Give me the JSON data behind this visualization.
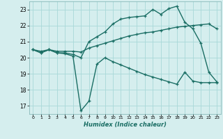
{
  "line1_x": [
    0,
    1,
    2,
    3,
    4,
    5,
    6,
    7,
    8,
    9,
    10,
    11,
    12,
    13,
    14,
    15,
    16,
    17,
    18,
    19,
    20,
    21,
    22,
    23
  ],
  "line1_y": [
    20.5,
    20.3,
    20.5,
    20.3,
    20.3,
    20.2,
    20.0,
    21.0,
    21.3,
    21.6,
    22.1,
    22.4,
    22.5,
    22.55,
    22.6,
    23.0,
    22.7,
    23.05,
    23.2,
    22.2,
    21.8,
    20.9,
    19.1,
    18.5
  ],
  "line2_x": [
    0,
    1,
    2,
    3,
    4,
    5,
    6,
    7,
    8,
    9,
    10,
    11,
    12,
    13,
    14,
    15,
    16,
    17,
    18,
    19,
    20,
    21,
    22,
    23
  ],
  "line2_y": [
    20.5,
    20.4,
    20.5,
    20.4,
    20.4,
    20.4,
    20.35,
    20.6,
    20.75,
    20.9,
    21.05,
    21.2,
    21.35,
    21.45,
    21.55,
    21.6,
    21.7,
    21.8,
    21.9,
    21.95,
    22.0,
    22.05,
    22.1,
    21.8
  ],
  "line3_x": [
    0,
    1,
    2,
    3,
    4,
    5,
    6,
    7,
    8,
    9,
    10,
    11,
    12,
    13,
    14,
    15,
    16,
    17,
    18,
    19,
    20,
    21,
    22,
    23
  ],
  "line3_y": [
    20.5,
    20.3,
    20.5,
    20.3,
    20.25,
    20.1,
    16.7,
    17.3,
    19.6,
    20.0,
    19.75,
    19.55,
    19.35,
    19.15,
    18.95,
    18.8,
    18.65,
    18.5,
    18.35,
    19.1,
    18.55,
    18.45,
    18.45,
    18.45
  ],
  "line_color": "#1a6e64",
  "bg_color": "#d5eeee",
  "grid_color": "#a8d8d8",
  "xlabel": "Humidex (Indice chaleur)",
  "xlim": [
    -0.5,
    23.5
  ],
  "ylim": [
    16.5,
    23.5
  ],
  "yticks": [
    17,
    18,
    19,
    20,
    21,
    22,
    23
  ],
  "xticks": [
    0,
    1,
    2,
    3,
    4,
    5,
    6,
    7,
    8,
    9,
    10,
    11,
    12,
    13,
    14,
    15,
    16,
    17,
    18,
    19,
    20,
    21,
    22,
    23
  ],
  "marker_size": 3.5,
  "line_width": 1.0
}
